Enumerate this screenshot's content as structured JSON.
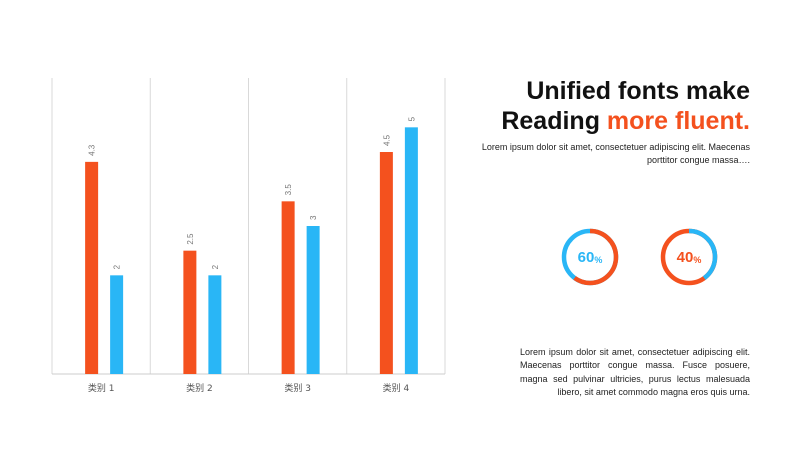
{
  "chart_data": {
    "type": "bar",
    "categories": [
      "类别 1",
      "类别 2",
      "类别 3",
      "类别 4"
    ],
    "series": [
      {
        "values": [
          4.3,
          2.5,
          3.5,
          4.5
        ],
        "color": "#f4511e"
      },
      {
        "values": [
          2,
          2,
          3,
          5
        ],
        "color": "#29b6f6"
      }
    ],
    "ylim": [
      0,
      6
    ],
    "grid": "vertical separators",
    "legend": "none"
  },
  "headline": {
    "line1": "Unified fonts make",
    "line2_plain": "Reading ",
    "line2_accent": "more fluent."
  },
  "lead_text": "Lorem ipsum dolor sit amet, consectetuer adipiscing elit. Maecenas porttitor congue massa….",
  "donuts": [
    {
      "value": "60",
      "unit": "%",
      "percent": 60,
      "arc_color": "#f4511e",
      "track_color": "#29b6f6",
      "text_color": "#29b6f6"
    },
    {
      "value": "40",
      "unit": "%",
      "percent": 40,
      "arc_color": "#29b6f6",
      "track_color": "#f4511e",
      "text_color": "#f4511e"
    }
  ],
  "body_text": "Lorem ipsum dolor sit amet, consectetuer adipiscing elit. Maecenas porttitor congue massa. Fusce posuere, magna sed pulvinar ultricies, purus lectus malesuada libero, sit amet commodo magna eros quis urna."
}
